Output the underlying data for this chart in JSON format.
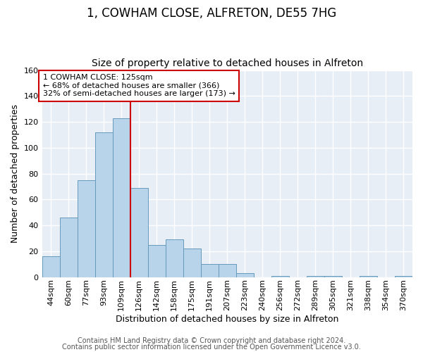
{
  "title": "1, COWHAM CLOSE, ALFRETON, DE55 7HG",
  "subtitle": "Size of property relative to detached houses in Alfreton",
  "xlabel": "Distribution of detached houses by size in Alfreton",
  "ylabel": "Number of detached properties",
  "bar_labels": [
    "44sqm",
    "60sqm",
    "77sqm",
    "93sqm",
    "109sqm",
    "126sqm",
    "142sqm",
    "158sqm",
    "175sqm",
    "191sqm",
    "207sqm",
    "223sqm",
    "240sqm",
    "256sqm",
    "272sqm",
    "289sqm",
    "305sqm",
    "321sqm",
    "338sqm",
    "354sqm",
    "370sqm"
  ],
  "bar_values": [
    16,
    46,
    75,
    112,
    123,
    69,
    25,
    29,
    22,
    10,
    10,
    3,
    0,
    1,
    0,
    1,
    1,
    0,
    1,
    0,
    1
  ],
  "bar_color": "#b8d4ea",
  "bar_edge_color": "#6699bb",
  "highlight_bar_index": 5,
  "highlight_color": "#cc0000",
  "annotation_lines": [
    "1 COWHAM CLOSE: 125sqm",
    "← 68% of detached houses are smaller (366)",
    "32% of semi-detached houses are larger (173) →"
  ],
  "annotation_box_color": "#ffffff",
  "annotation_box_edge_color": "#cc0000",
  "ylim": [
    0,
    160
  ],
  "yticks": [
    0,
    20,
    40,
    60,
    80,
    100,
    120,
    140,
    160
  ],
  "footer_lines": [
    "Contains HM Land Registry data © Crown copyright and database right 2024.",
    "Contains public sector information licensed under the Open Government Licence v3.0."
  ],
  "bg_color": "#ffffff",
  "plot_bg_color": "#e8eef6",
  "grid_color": "#ffffff",
  "title_fontsize": 12,
  "subtitle_fontsize": 10,
  "axis_label_fontsize": 9,
  "tick_fontsize": 8,
  "footer_fontsize": 7
}
